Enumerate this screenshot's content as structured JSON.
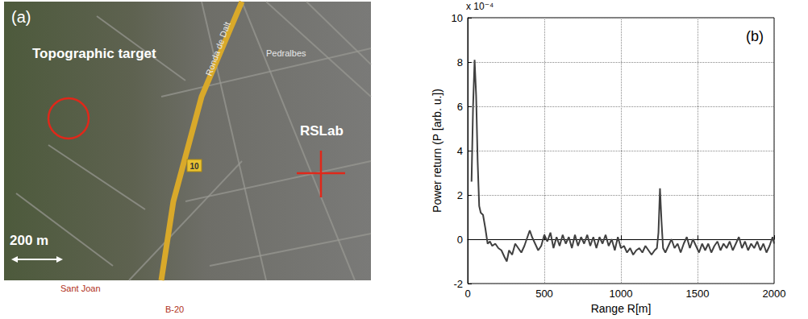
{
  "map": {
    "panel_label": "(a)",
    "target_label": "Topographic target",
    "site_label": "RSLab",
    "scale_label": "200 m",
    "place_labels": [
      "Pedralbes",
      "Ronda de Dalt",
      "Sant Joan",
      "B-20",
      "10"
    ]
  },
  "chart_data": {
    "type": "line",
    "annotation": "(b)",
    "xlabel": "Range R[m]",
    "ylabel": "Power return (P [arb. u.])",
    "y_scale_label": "x 10⁻⁴",
    "color": "#404040",
    "grid": true,
    "xlim": [
      0,
      2000
    ],
    "xticks": [
      0,
      500,
      1000,
      1500,
      2000
    ],
    "ylim": [
      -2,
      10
    ],
    "yticks": [
      -2,
      0,
      2,
      4,
      6,
      8,
      10
    ],
    "x": [
      25,
      35,
      45,
      55,
      65,
      75,
      85,
      100,
      115,
      130,
      145,
      160,
      180,
      200,
      220,
      240,
      255,
      270,
      290,
      310,
      330,
      350,
      370,
      390,
      405,
      420,
      440,
      460,
      480,
      500,
      520,
      540,
      560,
      580,
      600,
      620,
      640,
      660,
      680,
      700,
      720,
      740,
      760,
      780,
      800,
      820,
      840,
      860,
      880,
      900,
      920,
      940,
      960,
      980,
      1000,
      1020,
      1040,
      1060,
      1080,
      1100,
      1120,
      1140,
      1160,
      1180,
      1200,
      1220,
      1235,
      1245,
      1255,
      1265,
      1275,
      1290,
      1310,
      1330,
      1350,
      1370,
      1390,
      1410,
      1430,
      1450,
      1470,
      1490,
      1510,
      1530,
      1550,
      1570,
      1590,
      1610,
      1630,
      1650,
      1670,
      1690,
      1710,
      1730,
      1750,
      1770,
      1790,
      1810,
      1830,
      1850,
      1870,
      1890,
      1910,
      1930,
      1950,
      1970,
      1990,
      2000
    ],
    "values": [
      2.6,
      6,
      8.1,
      6.5,
      3.5,
      1.5,
      1.2,
      1.1,
      0.5,
      -0.2,
      -0.1,
      -0.3,
      -0.2,
      -0.4,
      -0.5,
      -0.8,
      -1.0,
      -0.5,
      -0.7,
      -0.2,
      -0.4,
      -0.6,
      -0.3,
      0.1,
      0.4,
      0.1,
      -0.2,
      -0.5,
      -0.3,
      0.2,
      -0.1,
      0.3,
      -0.4,
      0.1,
      -0.3,
      0.2,
      -0.2,
      0.1,
      -0.4,
      0.2,
      -0.3,
      0.1,
      -0.2,
      0.2,
      -0.3,
      0.1,
      -0.4,
      0.1,
      -0.2,
      0.2,
      -0.3,
      0.0,
      -0.5,
      0.1,
      -0.4,
      -0.3,
      -0.6,
      -0.4,
      -0.7,
      -0.5,
      -0.4,
      -0.6,
      -0.3,
      -0.5,
      -0.7,
      -0.5,
      -0.4,
      0.3,
      2.3,
      0.8,
      -0.4,
      -0.6,
      -0.3,
      0.0,
      -0.4,
      -0.2,
      -0.6,
      -0.2,
      0.1,
      -0.4,
      0.0,
      -0.3,
      -0.6,
      -0.2,
      -0.5,
      -0.2,
      -0.6,
      -0.3,
      -0.1,
      -0.5,
      -0.2,
      -0.4,
      -0.1,
      -0.5,
      -0.2,
      0.1,
      -0.4,
      -0.1,
      -0.5,
      -0.2,
      -0.4,
      -0.1,
      -0.5,
      -0.2,
      -0.6,
      -0.3,
      0.1,
      -0.2
    ]
  }
}
